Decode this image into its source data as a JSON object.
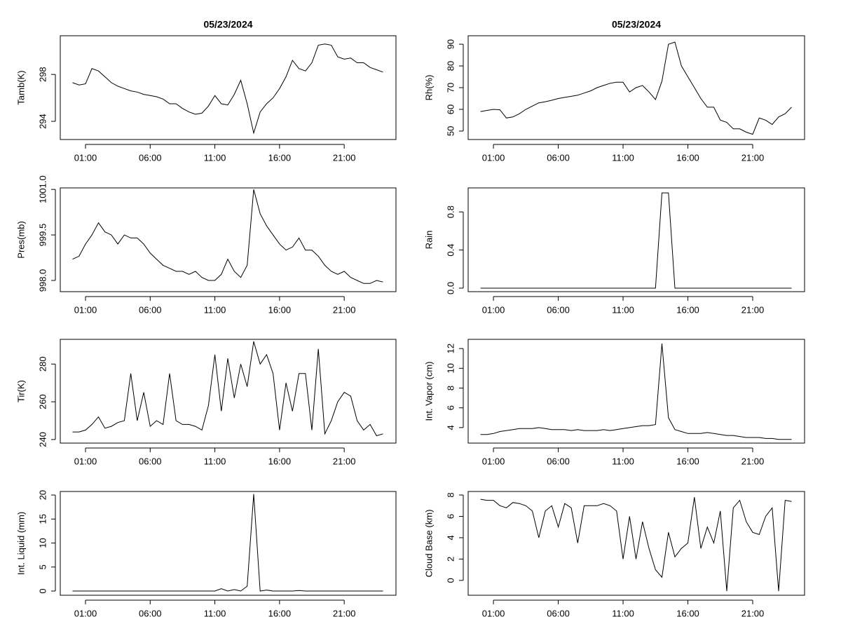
{
  "chart_data": [
    {
      "type": "line",
      "title": "05/23/2024",
      "ylabel": "Tamb(K)",
      "color": "#000000",
      "x": [
        0,
        0.5,
        1,
        1.5,
        2,
        2.5,
        3,
        3.5,
        4,
        4.5,
        5,
        5.5,
        6,
        6.5,
        7,
        7.5,
        8,
        8.5,
        9,
        9.5,
        10,
        10.5,
        11,
        11.5,
        12,
        12.5,
        13,
        13.5,
        14,
        14.5,
        15,
        15.5,
        16,
        16.5,
        17,
        17.5,
        18,
        18.5,
        19,
        19.5,
        20,
        20.5,
        21,
        21.5,
        22,
        22.5,
        23,
        23.5,
        24
      ],
      "values": [
        297.3,
        297.1,
        297.2,
        298.5,
        298.3,
        297.8,
        297.3,
        297.0,
        296.8,
        296.6,
        296.5,
        296.3,
        296.2,
        296.1,
        295.9,
        295.5,
        295.5,
        295.1,
        294.8,
        294.6,
        294.7,
        295.3,
        296.2,
        295.5,
        295.4,
        296.3,
        297.5,
        295.5,
        293.0,
        294.8,
        295.5,
        296.0,
        296.8,
        297.8,
        299.2,
        298.5,
        298.3,
        299.0,
        300.5,
        300.6,
        300.5,
        299.5,
        299.3,
        299.4,
        299.0,
        299.0,
        298.6,
        298.4,
        298.2
      ],
      "xlim": [
        -0.95,
        25
      ],
      "xticks": [
        {
          "value": 1,
          "label": "01:00"
        },
        {
          "value": 6,
          "label": "06:00"
        },
        {
          "value": 11,
          "label": "11:00"
        },
        {
          "value": 16,
          "label": "16:00"
        },
        {
          "value": 21,
          "label": "21:00"
        }
      ],
      "ylim": [
        292.45,
        301.3
      ],
      "yticks": [
        294,
        298
      ]
    },
    {
      "type": "line",
      "title": "05/23/2024",
      "ylabel": "Rh(%)",
      "color": "#000000",
      "x": [
        0,
        0.5,
        1,
        1.5,
        2,
        2.5,
        3,
        3.5,
        4,
        4.5,
        5,
        5.5,
        6,
        6.5,
        7,
        7.5,
        8,
        8.5,
        9,
        9.5,
        10,
        10.5,
        11,
        11.5,
        12,
        12.5,
        13,
        13.5,
        14,
        14.5,
        15,
        15.5,
        16,
        16.5,
        17,
        17.5,
        18,
        18.5,
        19,
        19.5,
        20,
        20.5,
        21,
        21.5,
        22,
        22.5,
        23,
        23.5,
        24
      ],
      "values": [
        59,
        59.5,
        60,
        59.8,
        56,
        56.5,
        58,
        60,
        61.5,
        63,
        63.5,
        64.2,
        65,
        65.5,
        66,
        66.5,
        67.5,
        68.5,
        70,
        71,
        72,
        72.5,
        72.5,
        68,
        70,
        71,
        68,
        64.5,
        73,
        90,
        91,
        80,
        75,
        70,
        65,
        61,
        61,
        55,
        54,
        51,
        51,
        49.5,
        48.5,
        56,
        55,
        53,
        56.5,
        58,
        61
      ],
      "xlim": [
        -0.95,
        25
      ],
      "xticks": [
        {
          "value": 1,
          "label": "01:00"
        },
        {
          "value": 6,
          "label": "06:00"
        },
        {
          "value": 11,
          "label": "11:00"
        },
        {
          "value": 16,
          "label": "16:00"
        },
        {
          "value": 21,
          "label": "21:00"
        }
      ],
      "ylim": [
        46.1,
        93.9
      ],
      "yticks": [
        50,
        60,
        70,
        80,
        90
      ]
    },
    {
      "type": "line",
      "ylabel": "Pres(mb)",
      "color": "#000000",
      "x": [
        0,
        0.5,
        1,
        1.5,
        2,
        2.5,
        3,
        3.5,
        4,
        4.5,
        5,
        5.5,
        6,
        6.5,
        7,
        7.5,
        8,
        8.5,
        9,
        9.5,
        10,
        10.5,
        11,
        11.5,
        12,
        12.5,
        13,
        13.5,
        14,
        14.5,
        15,
        15.5,
        16,
        16.5,
        17,
        17.5,
        18,
        18.5,
        19,
        19.5,
        20,
        20.5,
        21,
        21.5,
        22,
        22.5,
        23,
        23.5,
        24
      ],
      "values": [
        998.7,
        998.8,
        999.2,
        999.5,
        999.9,
        999.6,
        999.5,
        999.2,
        999.5,
        999.4,
        999.4,
        999.2,
        998.9,
        998.7,
        998.5,
        998.4,
        998.3,
        998.3,
        998.2,
        998.3,
        998.1,
        998.0,
        998.0,
        998.2,
        998.7,
        998.3,
        998.1,
        998.5,
        1001.0,
        1000.2,
        999.8,
        999.5,
        999.2,
        999.0,
        999.1,
        999.4,
        999.0,
        999.0,
        998.8,
        998.5,
        998.3,
        998.2,
        998.3,
        998.1,
        998.0,
        997.9,
        997.9,
        998.0,
        997.95
      ],
      "xlim": [
        -0.95,
        25
      ],
      "xticks": [
        {
          "value": 1,
          "label": "01:00"
        },
        {
          "value": 6,
          "label": "06:00"
        },
        {
          "value": 11,
          "label": "11:00"
        },
        {
          "value": 16,
          "label": "16:00"
        },
        {
          "value": 21,
          "label": "21:00"
        }
      ],
      "ylim": [
        997.63,
        1001.05
      ],
      "yticks": [
        {
          "value": 998,
          "label": "998.0"
        },
        {
          "value": 999.5,
          "label": "999.5"
        },
        {
          "value": 1001,
          "label": "1001.0"
        }
      ]
    },
    {
      "type": "line",
      "ylabel": "Rain",
      "color": "#000000",
      "x": [
        0,
        0.5,
        1,
        1.5,
        2,
        2.5,
        3,
        3.5,
        4,
        4.5,
        5,
        5.5,
        6,
        6.5,
        7,
        7.5,
        8,
        8.5,
        9,
        9.5,
        10,
        10.5,
        11,
        11.5,
        12,
        12.5,
        13,
        13.5,
        14,
        14.5,
        15,
        15.5,
        16,
        16.5,
        17,
        17.5,
        18,
        18.5,
        19,
        19.5,
        20,
        20.5,
        21,
        21.5,
        22,
        22.5,
        23,
        23.5,
        24
      ],
      "values": [
        0,
        0,
        0,
        0,
        0,
        0,
        0,
        0,
        0,
        0,
        0,
        0,
        0,
        0,
        0,
        0,
        0,
        0,
        0,
        0,
        0,
        0,
        0,
        0,
        0,
        0,
        0,
        0,
        1,
        1,
        0,
        0,
        0,
        0,
        0,
        0,
        0,
        0,
        0,
        0,
        0,
        0,
        0,
        0,
        0,
        0,
        0,
        0,
        0
      ],
      "xlim": [
        -0.95,
        25
      ],
      "xticks": [
        {
          "value": 1,
          "label": "01:00"
        },
        {
          "value": 6,
          "label": "06:00"
        },
        {
          "value": 11,
          "label": "11:00"
        },
        {
          "value": 16,
          "label": "16:00"
        },
        {
          "value": 21,
          "label": "21:00"
        }
      ],
      "ylim": [
        -0.037,
        1.052
      ],
      "yticks": [
        {
          "value": 0,
          "label": "0.0"
        },
        {
          "value": 0.4,
          "label": "0.4"
        },
        {
          "value": 0.8,
          "label": "0.8"
        }
      ]
    },
    {
      "type": "line",
      "ylabel": "Tir(K)",
      "color": "#000000",
      "x": [
        0,
        0.5,
        1,
        1.5,
        2,
        2.5,
        3,
        3.5,
        4,
        4.5,
        5,
        5.5,
        6,
        6.5,
        7,
        7.5,
        8,
        8.5,
        9,
        9.5,
        10,
        10.5,
        11,
        11.5,
        12,
        12.5,
        13,
        13.5,
        14,
        14.5,
        15,
        15.5,
        16,
        16.5,
        17,
        17.5,
        18,
        18.5,
        19,
        19.5,
        20,
        20.5,
        21,
        21.5,
        22,
        22.5,
        23,
        23.5,
        24
      ],
      "values": [
        244,
        244,
        245,
        248,
        252,
        246,
        247,
        249,
        250,
        275,
        250,
        265,
        247,
        250,
        248,
        275,
        250,
        248,
        248,
        247,
        245,
        258,
        285,
        255,
        283,
        262,
        280,
        268,
        292,
        280,
        285,
        275,
        245,
        270,
        255,
        275,
        275,
        245,
        288,
        243,
        250,
        260,
        265,
        263,
        250,
        245,
        248,
        242,
        243
      ],
      "xlim": [
        -0.95,
        25
      ],
      "xticks": [
        {
          "value": 1,
          "label": "01:00"
        },
        {
          "value": 6,
          "label": "06:00"
        },
        {
          "value": 11,
          "label": "11:00"
        },
        {
          "value": 16,
          "label": "16:00"
        },
        {
          "value": 21,
          "label": "21:00"
        }
      ],
      "ylim": [
        238.1,
        293.1
      ],
      "yticks": [
        240,
        260,
        280
      ]
    },
    {
      "type": "line",
      "ylabel": "Int. Vapor (cm)",
      "color": "#000000",
      "x": [
        0,
        0.5,
        1,
        1.5,
        2,
        2.5,
        3,
        3.5,
        4,
        4.5,
        5,
        5.5,
        6,
        6.5,
        7,
        7.5,
        8,
        8.5,
        9,
        9.5,
        10,
        10.5,
        11,
        11.5,
        12,
        12.5,
        13,
        13.5,
        14,
        14.5,
        15,
        15.5,
        16,
        16.5,
        17,
        17.5,
        18,
        18.5,
        19,
        19.5,
        20,
        20.5,
        21,
        21.5,
        22,
        22.5,
        23,
        23.5,
        24
      ],
      "values": [
        3.3,
        3.3,
        3.4,
        3.6,
        3.7,
        3.8,
        3.9,
        3.9,
        3.9,
        4.0,
        3.9,
        3.8,
        3.8,
        3.8,
        3.7,
        3.8,
        3.7,
        3.7,
        3.7,
        3.8,
        3.7,
        3.8,
        3.9,
        4.0,
        4.1,
        4.2,
        4.2,
        4.3,
        12.5,
        5.0,
        3.8,
        3.6,
        3.4,
        3.4,
        3.4,
        3.5,
        3.4,
        3.3,
        3.2,
        3.2,
        3.1,
        3.0,
        3.0,
        3.0,
        2.9,
        2.9,
        2.8,
        2.8,
        2.8
      ],
      "xlim": [
        -0.95,
        25
      ],
      "xticks": [
        {
          "value": 1,
          "label": "01:00"
        },
        {
          "value": 6,
          "label": "06:00"
        },
        {
          "value": 11,
          "label": "11:00"
        },
        {
          "value": 16,
          "label": "16:00"
        },
        {
          "value": 21,
          "label": "21:00"
        }
      ],
      "ylim": [
        2.43,
        12.93
      ],
      "yticks": [
        4,
        6,
        8,
        10,
        12
      ]
    },
    {
      "type": "line",
      "ylabel": "Int. Liquid (mm)",
      "color": "#000000",
      "x": [
        0,
        0.5,
        1,
        1.5,
        2,
        2.5,
        3,
        3.5,
        4,
        4.5,
        5,
        5.5,
        6,
        6.5,
        7,
        7.5,
        8,
        8.5,
        9,
        9.5,
        10,
        10.5,
        11,
        11.5,
        12,
        12.5,
        13,
        13.5,
        14,
        14.5,
        15,
        15.5,
        16,
        16.5,
        17,
        17.5,
        18,
        18.5,
        19,
        19.5,
        20,
        20.5,
        21,
        21.5,
        22,
        22.5,
        23,
        23.5,
        24
      ],
      "values": [
        0,
        0,
        0,
        0,
        0,
        0,
        0,
        0,
        0,
        0,
        0,
        0,
        0,
        0,
        0,
        0,
        0,
        0,
        0,
        0,
        0,
        0,
        0,
        0.5,
        0,
        0.3,
        0,
        1,
        20.2,
        0,
        0.2,
        0,
        0,
        0,
        0,
        0.1,
        0,
        0,
        0,
        0,
        0,
        0,
        0,
        0,
        0,
        0,
        0,
        0,
        0
      ],
      "xlim": [
        -0.95,
        25
      ],
      "xticks": [
        {
          "value": 1,
          "label": "01:00"
        },
        {
          "value": 6,
          "label": "06:00"
        },
        {
          "value": 11,
          "label": "11:00"
        },
        {
          "value": 16,
          "label": "16:00"
        },
        {
          "value": 21,
          "label": "21:00"
        }
      ],
      "ylim": [
        -0.88,
        20.74
      ],
      "yticks": [
        0,
        5,
        10,
        15,
        20
      ]
    },
    {
      "type": "line",
      "ylabel": "Cloud Base (km)",
      "color": "#000000",
      "x": [
        0,
        0.5,
        1,
        1.5,
        2,
        2.5,
        3,
        3.5,
        4,
        4.5,
        5,
        5.5,
        6,
        6.5,
        7,
        7.5,
        8,
        8.5,
        9,
        9.5,
        10,
        10.5,
        11,
        11.5,
        12,
        12.5,
        13,
        13.5,
        14,
        14.5,
        15,
        15.5,
        16,
        16.5,
        17,
        17.5,
        18,
        18.5,
        19,
        19.5,
        20,
        20.5,
        21,
        21.5,
        22,
        22.5,
        23,
        23.5,
        24
      ],
      "values": [
        7.6,
        7.5,
        7.5,
        7.0,
        6.8,
        7.3,
        7.2,
        7.0,
        6.5,
        4.0,
        6.5,
        7.0,
        5.0,
        7.2,
        6.8,
        3.5,
        7.0,
        7.0,
        7.0,
        7.2,
        7.0,
        6.5,
        2.0,
        6.0,
        2.0,
        5.5,
        3.0,
        1.0,
        0.3,
        4.5,
        2.2,
        3.0,
        3.5,
        7.8,
        3.0,
        5.0,
        3.5,
        6.5,
        -1.0,
        6.8,
        7.5,
        5.5,
        4.5,
        4.3,
        6.0,
        6.8,
        -1.0,
        7.5,
        7.4
      ],
      "xlim": [
        -0.95,
        25
      ],
      "xticks": [
        {
          "value": 1,
          "label": "01:00"
        },
        {
          "value": 6,
          "label": "06:00"
        },
        {
          "value": 11,
          "label": "11:00"
        },
        {
          "value": 16,
          "label": "16:00"
        },
        {
          "value": 21,
          "label": "21:00"
        }
      ],
      "ylim": [
        -1.39,
        8.33
      ],
      "yticks": [
        0,
        2,
        4,
        6,
        8
      ]
    }
  ]
}
